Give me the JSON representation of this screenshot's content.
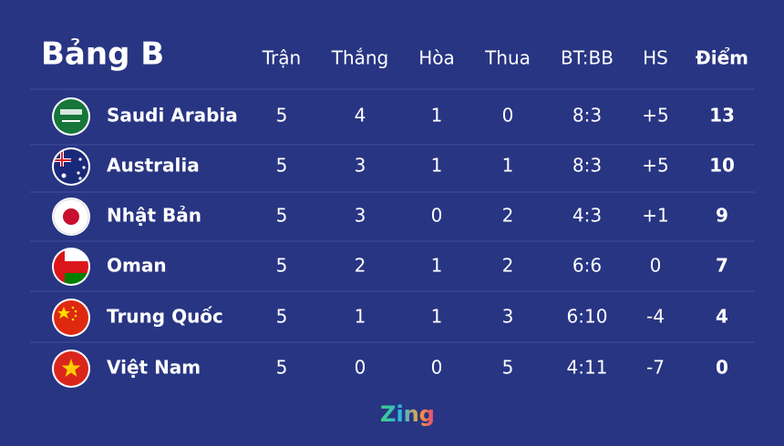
{
  "title": "Bảng B",
  "header": [
    "Trận",
    "Thắng",
    "Hòa",
    "Thua",
    "BT:BB",
    "HS",
    "Điểm"
  ],
  "rows": [
    [
      "Saudi Arabia",
      5,
      4,
      1,
      0,
      "8:3",
      "+5",
      13
    ],
    [
      "Australia",
      5,
      3,
      1,
      1,
      "8:3",
      "+5",
      10
    ],
    [
      "Nhật Bản",
      5,
      3,
      0,
      2,
      "4:3",
      "+1",
      9
    ],
    [
      "Oman",
      5,
      2,
      1,
      2,
      "6:6",
      0,
      7
    ],
    [
      "Trung Quốc",
      5,
      1,
      1,
      3,
      "6:10",
      -4,
      4
    ],
    [
      "Việt Nam",
      5,
      0,
      0,
      5,
      "4:11",
      -7,
      0
    ]
  ],
  "logo": "Zing"
}
